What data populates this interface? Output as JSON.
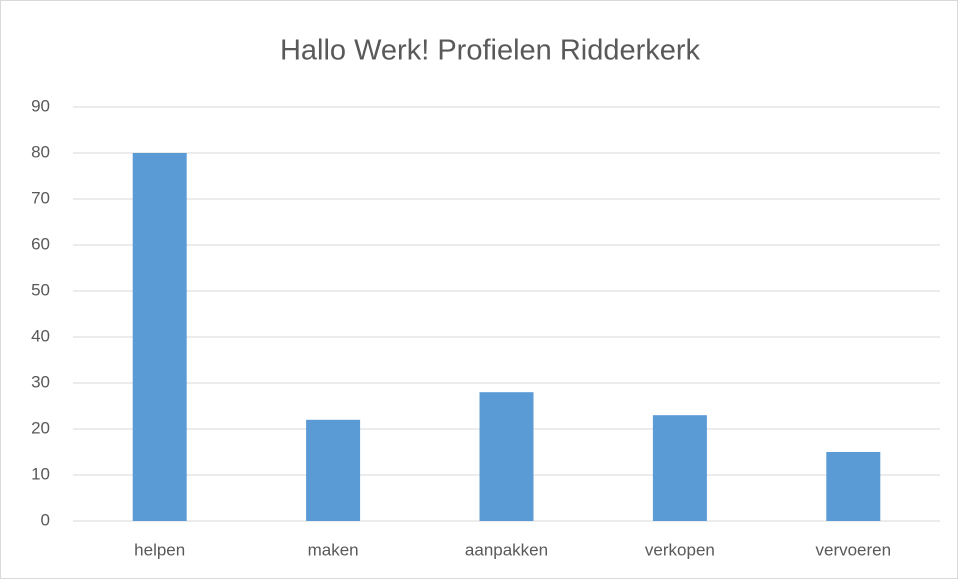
{
  "chart_data": {
    "type": "bar",
    "title": "Hallo Werk! Profielen Ridderkerk",
    "categories": [
      "helpen",
      "maken",
      "aanpakken",
      "verkopen",
      "vervoeren"
    ],
    "values": [
      80,
      22,
      28,
      23,
      15
    ],
    "color": "#5b9bd5",
    "ylim": [
      0,
      90
    ],
    "yticks": [
      0,
      10,
      20,
      30,
      40,
      50,
      60,
      70,
      80,
      90
    ],
    "grid": true
  }
}
